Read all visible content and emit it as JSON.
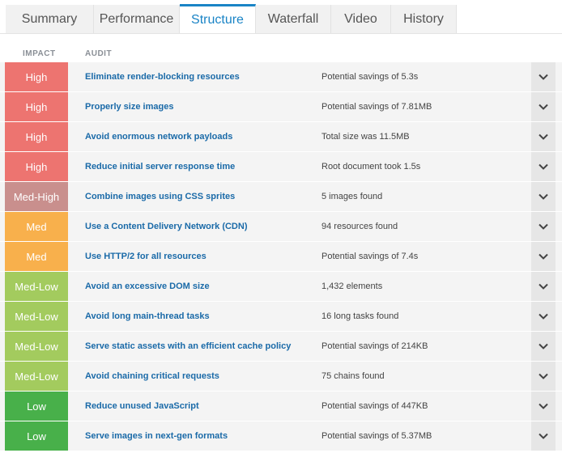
{
  "tabs": [
    {
      "label": "Summary",
      "active": false
    },
    {
      "label": "Performance",
      "active": false
    },
    {
      "label": "Structure",
      "active": true
    },
    {
      "label": "Waterfall",
      "active": false
    },
    {
      "label": "Video",
      "active": false
    },
    {
      "label": "History",
      "active": false
    }
  ],
  "table": {
    "impact_header": "IMPACT",
    "audit_header": "AUDIT",
    "rows": [
      {
        "impact": "High",
        "audit": "Eliminate render-blocking resources",
        "detail": "Potential savings of 5.3s"
      },
      {
        "impact": "High",
        "audit": "Properly size images",
        "detail": "Potential savings of 7.81MB"
      },
      {
        "impact": "High",
        "audit": "Avoid enormous network payloads",
        "detail": "Total size was 11.5MB"
      },
      {
        "impact": "High",
        "audit": "Reduce initial server response time",
        "detail": "Root document took 1.5s"
      },
      {
        "impact": "Med-High",
        "audit": "Combine images using CSS sprites",
        "detail": "5 images found"
      },
      {
        "impact": "Med",
        "audit": "Use a Content Delivery Network (CDN)",
        "detail": "94 resources found"
      },
      {
        "impact": "Med",
        "audit": "Use HTTP/2 for all resources",
        "detail": "Potential savings of 7.4s"
      },
      {
        "impact": "Med-Low",
        "audit": "Avoid an excessive DOM size",
        "detail": "1,432 elements"
      },
      {
        "impact": "Med-Low",
        "audit": "Avoid long main-thread tasks",
        "detail": "16 long tasks found"
      },
      {
        "impact": "Med-Low",
        "audit": "Serve static assets with an efficient cache policy",
        "detail": "Potential savings of 214KB"
      },
      {
        "impact": "Med-Low",
        "audit": "Avoid chaining critical requests",
        "detail": "75 chains found"
      },
      {
        "impact": "Low",
        "audit": "Reduce unused JavaScript",
        "detail": "Potential savings of 447KB"
      },
      {
        "impact": "Low",
        "audit": "Serve images in next-gen formats",
        "detail": "Potential savings of 5.37MB"
      }
    ]
  },
  "impact_colors": {
    "High": "#ed7470",
    "Med-High": "#c98f8d",
    "Med": "#f8b04c",
    "Med-Low": "#a3cb5e",
    "Low": "#48b04a"
  },
  "accent_color": "#1a84c6",
  "chevron_icon": "chevron-down-icon"
}
